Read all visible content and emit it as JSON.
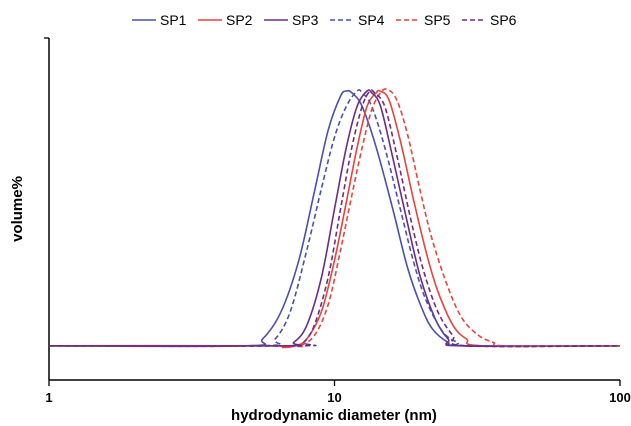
{
  "chart_data": {
    "type": "line",
    "xlabel": "hydrodynamic diameter (nm)",
    "ylabel": "volume%",
    "x_scale": "log",
    "xlim": [
      1,
      100
    ],
    "x_ticks": [
      "1",
      "10",
      "100"
    ],
    "y_ticks": [],
    "ylim": [
      0,
      1.0
    ],
    "grid": false,
    "legend_position": "top",
    "series": [
      {
        "name": "SP1",
        "color": "#4a4fb0",
        "dash": "solid",
        "points": [
          [
            1,
            0.1
          ],
          [
            4.9,
            0.1
          ],
          [
            5.6,
            0.12
          ],
          [
            6.5,
            0.2
          ],
          [
            7.5,
            0.35
          ],
          [
            8.5,
            0.55
          ],
          [
            9.5,
            0.73
          ],
          [
            10.5,
            0.83
          ],
          [
            11,
            0.845
          ],
          [
            11.5,
            0.84
          ],
          [
            12.5,
            0.8
          ],
          [
            14,
            0.68
          ],
          [
            16,
            0.5
          ],
          [
            18,
            0.33
          ],
          [
            20,
            0.22
          ],
          [
            22,
            0.15
          ],
          [
            25,
            0.11
          ],
          [
            28,
            0.1
          ],
          [
            100,
            0.1
          ]
        ]
      },
      {
        "name": "SP2",
        "color": "#e8433c",
        "dash": "solid",
        "points": [
          [
            1,
            0.1
          ],
          [
            6,
            0.1
          ],
          [
            6.6,
            0.095
          ],
          [
            7.3,
            0.1
          ],
          [
            8,
            0.12
          ],
          [
            9,
            0.2
          ],
          [
            10,
            0.35
          ],
          [
            11,
            0.52
          ],
          [
            12,
            0.68
          ],
          [
            13,
            0.8
          ],
          [
            14,
            0.84
          ],
          [
            14.4,
            0.845
          ],
          [
            15.5,
            0.82
          ],
          [
            17,
            0.7
          ],
          [
            19,
            0.52
          ],
          [
            21,
            0.37
          ],
          [
            23,
            0.26
          ],
          [
            26,
            0.16
          ],
          [
            29,
            0.12
          ],
          [
            33,
            0.1
          ],
          [
            100,
            0.1
          ]
        ]
      },
      {
        "name": "SP3",
        "color": "#6b2d82",
        "dash": "solid",
        "points": [
          [
            1,
            0.1
          ],
          [
            6.5,
            0.1
          ],
          [
            7.2,
            0.11
          ],
          [
            8,
            0.16
          ],
          [
            9,
            0.3
          ],
          [
            10,
            0.5
          ],
          [
            11,
            0.68
          ],
          [
            12,
            0.8
          ],
          [
            13,
            0.845
          ],
          [
            13.5,
            0.84
          ],
          [
            14.5,
            0.8
          ],
          [
            16,
            0.65
          ],
          [
            18,
            0.46
          ],
          [
            20,
            0.3
          ],
          [
            22.5,
            0.18
          ],
          [
            25,
            0.12
          ],
          [
            28,
            0.1
          ],
          [
            100,
            0.1
          ]
        ]
      },
      {
        "name": "SP4",
        "color": "#4a4fb0",
        "dash": "dashed",
        "points": [
          [
            1,
            0.1
          ],
          [
            5.5,
            0.1
          ],
          [
            6.2,
            0.12
          ],
          [
            7,
            0.2
          ],
          [
            8,
            0.38
          ],
          [
            9,
            0.56
          ],
          [
            10,
            0.71
          ],
          [
            11,
            0.8
          ],
          [
            12,
            0.845
          ],
          [
            12.5,
            0.84
          ],
          [
            13.5,
            0.8
          ],
          [
            15,
            0.68
          ],
          [
            17,
            0.5
          ],
          [
            19,
            0.34
          ],
          [
            21,
            0.23
          ],
          [
            24,
            0.14
          ],
          [
            27,
            0.11
          ],
          [
            30,
            0.1
          ],
          [
            100,
            0.1
          ]
        ]
      },
      {
        "name": "SP5",
        "color": "#e8433c",
        "dash": "dashed",
        "points": [
          [
            1,
            0.1
          ],
          [
            6.5,
            0.1
          ],
          [
            7.5,
            0.1
          ],
          [
            8.5,
            0.13
          ],
          [
            9.5,
            0.22
          ],
          [
            10.5,
            0.38
          ],
          [
            11.5,
            0.54
          ],
          [
            12.5,
            0.68
          ],
          [
            13.5,
            0.79
          ],
          [
            14.5,
            0.84
          ],
          [
            15.3,
            0.85
          ],
          [
            16.5,
            0.82
          ],
          [
            18,
            0.72
          ],
          [
            20,
            0.55
          ],
          [
            22,
            0.41
          ],
          [
            25,
            0.27
          ],
          [
            28,
            0.18
          ],
          [
            32,
            0.13
          ],
          [
            36,
            0.11
          ],
          [
            40,
            0.1
          ],
          [
            100,
            0.1
          ]
        ]
      },
      {
        "name": "SP6",
        "color": "#6b2d82",
        "dash": "dashed",
        "points": [
          [
            1,
            0.1
          ],
          [
            7.3,
            0.1
          ],
          [
            7.8,
            0.11
          ],
          [
            8.5,
            0.16
          ],
          [
            9.5,
            0.3
          ],
          [
            10.5,
            0.5
          ],
          [
            11.5,
            0.68
          ],
          [
            12.5,
            0.8
          ],
          [
            13.3,
            0.845
          ],
          [
            13.8,
            0.84
          ],
          [
            15,
            0.8
          ],
          [
            16.5,
            0.66
          ],
          [
            18.5,
            0.47
          ],
          [
            20.5,
            0.32
          ],
          [
            23,
            0.2
          ],
          [
            26,
            0.13
          ],
          [
            29,
            0.1
          ],
          [
            100,
            0.1
          ]
        ]
      }
    ]
  }
}
